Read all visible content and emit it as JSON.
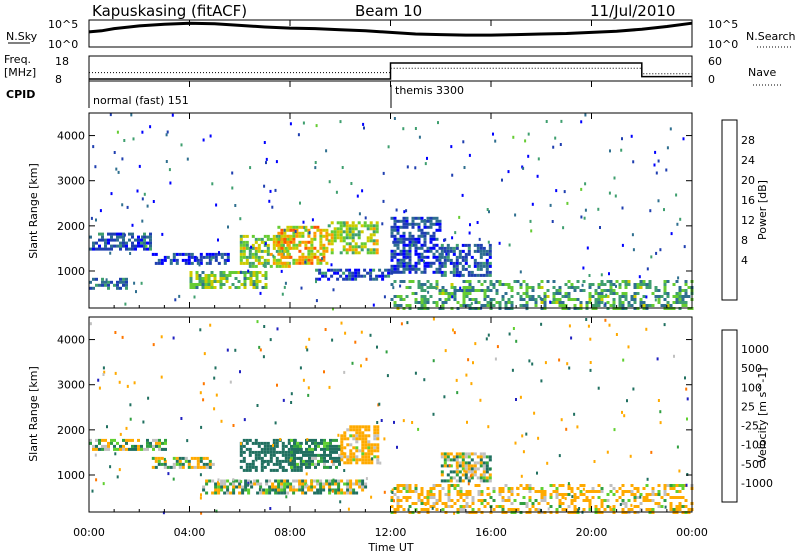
{
  "header": {
    "station": "Kapuskasing (fitACF)",
    "beam": "Beam 10",
    "date": "11/Jul/2010"
  },
  "noise_panel": {
    "left_label": "N.Sky",
    "right_label": "N.Search",
    "left_ticks": [
      "10^5",
      "10^0"
    ],
    "right_ticks": [
      "10^5",
      "10^0"
    ]
  },
  "freq_panel": {
    "left_label_1": "Freq.",
    "left_label_2": "[MHz]",
    "right_label": "Nave",
    "left_ticks": [
      "18",
      "8"
    ],
    "right_ticks": [
      "60",
      "0"
    ]
  },
  "cpid": {
    "label": "CPID",
    "modes": [
      {
        "name": "normal (fast) 151",
        "start_hour": 0
      },
      {
        "name": "themis 3300",
        "start_hour": 12
      }
    ]
  },
  "x_axis": {
    "label": "Time UT",
    "ticks": [
      "00:00",
      "04:00",
      "08:00",
      "12:00",
      "16:00",
      "20:00",
      "00:00"
    ]
  },
  "colors": {
    "power_scale": [
      "#0000ff",
      "#1f3fb0",
      "#2f6f8f",
      "#3f9f6f",
      "#66cc33",
      "#cccc00",
      "#ff9900",
      "#ff5500",
      "#ff0000"
    ],
    "velocity_scale": [
      "#2020c0",
      "#207060",
      "#30a040",
      "#60d030",
      "#c0c0c0",
      "#ffaa00",
      "#ff7700",
      "#ff3300",
      "#ee0000"
    ]
  },
  "chart_data": [
    {
      "type": "line",
      "name": "noise",
      "x_unit": "hours UT",
      "xlim": [
        0,
        24
      ],
      "y_scale": "log",
      "ylim_log10": [
        0,
        5
      ],
      "series": [
        {
          "x": [
            0,
            0.5,
            1,
            2,
            3,
            4,
            5,
            6,
            7,
            8,
            9,
            10,
            11,
            12,
            13,
            14,
            15,
            16,
            17,
            18,
            19,
            20,
            21,
            22,
            23,
            24
          ],
          "log10": [
            2.8,
            3.0,
            3.4,
            3.9,
            4.2,
            4.4,
            4.3,
            4.0,
            3.7,
            3.5,
            3.4,
            3.2,
            3.0,
            2.7,
            2.4,
            2.3,
            2.2,
            2.2,
            2.3,
            2.4,
            2.5,
            2.7,
            2.9,
            3.3,
            3.8,
            4.4
          ]
        }
      ]
    },
    {
      "type": "line",
      "name": "frequency and nave",
      "xlim": [
        0,
        24
      ],
      "series": [
        {
          "name": "Freq.",
          "y_unit": "MHz",
          "ylim": [
            8,
            18
          ],
          "x": [
            0,
            12,
            12,
            22,
            22,
            24
          ],
          "values": [
            8,
            8,
            18,
            18,
            9.5,
            9.5
          ]
        },
        {
          "name": "Nave",
          "ylim": [
            0,
            60
          ],
          "x": [
            0,
            12,
            12,
            22,
            22,
            24
          ],
          "values": [
            24,
            24,
            40,
            40,
            20,
            20
          ]
        }
      ]
    },
    {
      "type": "heatmap",
      "name": "power",
      "ylabel": "Slant Range [km]",
      "xlim": [
        0,
        24
      ],
      "ylim": [
        180,
        4500
      ],
      "yticks": [
        1000,
        2000,
        3000,
        4000
      ],
      "colorbar": {
        "label": "Power [dB]",
        "ticks": [
          "28",
          "24",
          "20",
          "16",
          "12",
          "8",
          "4"
        ],
        "range": [
          0,
          30
        ]
      },
      "features": [
        {
          "t0": 0.0,
          "t1": 2.5,
          "r0": 1500,
          "r1": 1850,
          "value": 6
        },
        {
          "t0": 0.0,
          "t1": 1.5,
          "r0": 650,
          "r1": 850,
          "value": 8
        },
        {
          "t0": 2.5,
          "t1": 5.5,
          "r0": 1150,
          "r1": 1400,
          "value": 5
        },
        {
          "t0": 4.0,
          "t1": 7.0,
          "r0": 650,
          "r1": 1000,
          "value": 14
        },
        {
          "t0": 6.0,
          "t1": 8.0,
          "r0": 1100,
          "r1": 1800,
          "value": 16
        },
        {
          "t0": 7.5,
          "t1": 9.5,
          "r0": 1200,
          "r1": 2000,
          "value": 20
        },
        {
          "t0": 9.5,
          "t1": 11.5,
          "r0": 1400,
          "r1": 2100,
          "value": 16
        },
        {
          "t0": 9.0,
          "t1": 12.0,
          "r0": 850,
          "r1": 1050,
          "value": 6
        },
        {
          "t0": 12.0,
          "t1": 14.0,
          "r0": 1000,
          "r1": 2200,
          "value": 5
        },
        {
          "t0": 14.0,
          "t1": 16.0,
          "r0": 900,
          "r1": 1600,
          "value": 6
        },
        {
          "t0": 12.0,
          "t1": 24.0,
          "r0": 200,
          "r1": 800,
          "value": 12
        }
      ]
    },
    {
      "type": "heatmap",
      "name": "velocity",
      "ylabel": "Slant Range [km]",
      "xlim": [
        0,
        24
      ],
      "ylim": [
        180,
        4500
      ],
      "yticks": [
        1000,
        2000,
        3000,
        4000
      ],
      "colorbar": {
        "label": "Velocity [m s^-1]",
        "ticks": [
          "1000",
          "500",
          "100",
          "25",
          "-25",
          "-100",
          "-500",
          "-1000"
        ]
      },
      "features": [
        {
          "t0": 0.0,
          "t1": 3.0,
          "r0": 1550,
          "r1": 1800,
          "value": 0
        },
        {
          "t0": 2.5,
          "t1": 5.0,
          "r0": 1200,
          "r1": 1400,
          "value": 0
        },
        {
          "t0": 4.5,
          "t1": 11.0,
          "r0": 600,
          "r1": 900,
          "value": 0
        },
        {
          "t0": 6.0,
          "t1": 8.5,
          "r0": 1100,
          "r1": 1800,
          "value": 300
        },
        {
          "t0": 8.0,
          "t1": 10.0,
          "r0": 1200,
          "r1": 1800,
          "value": 150
        },
        {
          "t0": 10.0,
          "t1": 11.5,
          "r0": 1300,
          "r1": 2100,
          "value": -200
        },
        {
          "t0": 14.0,
          "t1": 16.0,
          "r0": 900,
          "r1": 1500,
          "value": 0
        },
        {
          "t0": 12.0,
          "t1": 24.0,
          "r0": 200,
          "r1": 800,
          "value": -150
        }
      ]
    }
  ]
}
